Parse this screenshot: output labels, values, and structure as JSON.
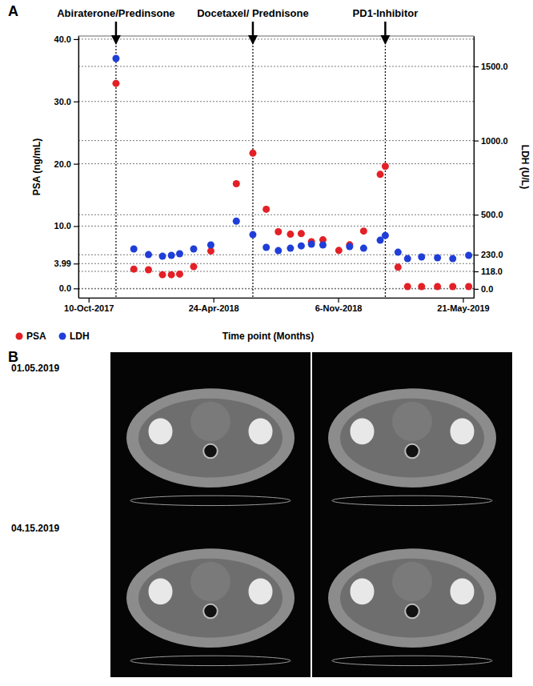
{
  "chart_data": {
    "type": "scatter",
    "panel": "A",
    "xlabel": "Time point (Months)",
    "ylabel": "PSA (ng/mL)",
    "y2label": "LDH (U/L)",
    "x": [
      "2017-11-22",
      "2017-12-20",
      "2018-01-12",
      "2018-02-03",
      "2018-02-17",
      "2018-03-02",
      "2018-03-24",
      "2018-04-20",
      "2018-05-30",
      "2018-06-25",
      "2018-07-16",
      "2018-08-04",
      "2018-08-23",
      "2018-09-09",
      "2018-09-25",
      "2018-10-13",
      "2018-11-07",
      "2018-11-24",
      "2018-12-16",
      "2019-01-11",
      "2019-01-19",
      "2019-02-08",
      "2019-02-23",
      "2019-03-17",
      "2019-04-11",
      "2019-05-05",
      "2019-05-30"
    ],
    "series": [
      {
        "name": "PSA",
        "color": "#e32026",
        "marker": "circle",
        "values": [
          32.9,
          3.1,
          3.0,
          2.2,
          2.2,
          2.3,
          3.5,
          6.0,
          16.8,
          21.7,
          12.7,
          9.1,
          8.7,
          8.8,
          7.5,
          7.8,
          6.1,
          7.0,
          9.2,
          18.3,
          19.6,
          3.4,
          0.3,
          0.3,
          0.3,
          0.3,
          0.3
        ]
      },
      {
        "name": "LDH",
        "color": "#1f3ed8",
        "marker": "circle",
        "axis": "y2",
        "values": [
          1554,
          269,
          231,
          220,
          226,
          237,
          269,
          296,
          457,
          366,
          280,
          258,
          274,
          290,
          301,
          296,
          null,
          285,
          274,
          328,
          360,
          247,
          204,
          215,
          210,
          204,
          226
        ]
      }
    ],
    "xlim": [
      "2017-09-24",
      "2019-06-07"
    ],
    "xticks": [
      {
        "value": "2017-10-10",
        "label": "10-Oct-2017"
      },
      {
        "value": "2018-04-24",
        "label": "24-Apr-2018"
      },
      {
        "value": "2018-11-06",
        "label": "6-Nov-2018"
      },
      {
        "value": "2019-05-21",
        "label": "21-May-2019"
      }
    ],
    "ylim": [
      -1.5,
      40.5
    ],
    "yticks": [
      {
        "value": 0,
        "label": "0.0"
      },
      3.99,
      {
        "value": 10,
        "label": "10.0"
      },
      {
        "value": 20,
        "label": "20.0"
      },
      {
        "value": 30,
        "label": "30.0"
      },
      {
        "value": 40,
        "label": "40.0"
      }
    ],
    "y2lim": [
      -60,
      1705
    ],
    "y2ticks": [
      {
        "value": 0,
        "label": "0.0"
      },
      {
        "value": 118,
        "label": "118.0"
      },
      {
        "value": 230,
        "label": "230.0"
      },
      {
        "value": 500,
        "label": "500.0"
      },
      {
        "value": 1000,
        "label": "1000.0"
      },
      {
        "value": 1500,
        "label": "1500.0"
      }
    ],
    "grid": true,
    "legend": "bottom",
    "annotations": [
      {
        "text": "Abiraterone/Predinsone",
        "x": "2017-11-22"
      },
      {
        "text": "Docetaxel/ Prednisone",
        "x": "2018-06-25"
      },
      {
        "text": "PD1-Inhibitor",
        "x": "2019-01-19"
      }
    ]
  },
  "image_panel": {
    "label": "B",
    "rows": [
      {
        "date": "01.05.2019"
      },
      {
        "date": "04.15.2019"
      }
    ]
  }
}
